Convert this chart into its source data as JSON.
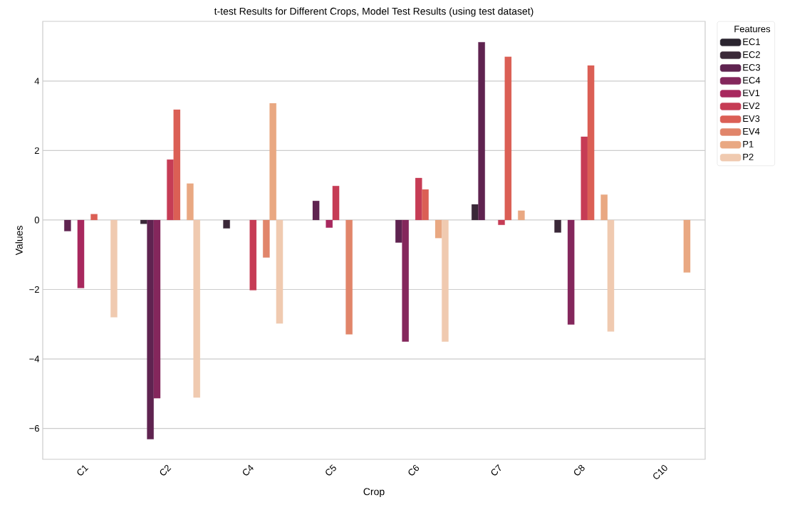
{
  "chart_data": {
    "type": "bar",
    "title": "t-test Results for Different Crops, Model Test Results (using test dataset)",
    "xlabel": "Crop",
    "ylabel": "Values",
    "legend_title": "Features",
    "categories": [
      "C1",
      "C2",
      "C4",
      "C5",
      "C6",
      "C7",
      "C8",
      "C10"
    ],
    "series": [
      {
        "name": "EC1",
        "color": "#2b2530",
        "values": [
          null,
          null,
          null,
          null,
          null,
          null,
          null,
          null
        ]
      },
      {
        "name": "EC2",
        "color": "#3a2838",
        "values": [
          null,
          -0.11,
          -0.24,
          null,
          null,
          0.45,
          -0.36,
          null
        ]
      },
      {
        "name": "EC3",
        "color": "#5f2350",
        "values": [
          -0.32,
          -6.31,
          null,
          0.55,
          -0.65,
          5.12,
          null,
          null
        ]
      },
      {
        "name": "EC4",
        "color": "#84275c",
        "values": [
          null,
          -5.13,
          null,
          null,
          -3.5,
          null,
          -3.01,
          null
        ]
      },
      {
        "name": "EV1",
        "color": "#a8285e",
        "values": [
          -1.96,
          null,
          null,
          -0.22,
          null,
          null,
          null,
          null
        ]
      },
      {
        "name": "EV2",
        "color": "#c63c55",
        "values": [
          null,
          1.74,
          -2.02,
          0.98,
          1.21,
          -0.14,
          2.4,
          null
        ]
      },
      {
        "name": "EV3",
        "color": "#db5f55",
        "values": [
          0.17,
          3.18,
          null,
          null,
          0.88,
          4.7,
          4.45,
          null
        ]
      },
      {
        "name": "EV4",
        "color": "#e1856a",
        "values": [
          null,
          null,
          -1.08,
          -3.29,
          null,
          null,
          null,
          null
        ]
      },
      {
        "name": "P1",
        "color": "#e9a882",
        "values": [
          null,
          1.05,
          3.36,
          null,
          -0.52,
          0.27,
          0.73,
          -1.51
        ]
      },
      {
        "name": "P2",
        "color": "#f0cab0",
        "values": [
          -2.8,
          -5.11,
          -2.98,
          null,
          -3.5,
          null,
          -3.21,
          null
        ]
      }
    ],
    "ylim": [
      -6.89,
      5.72
    ],
    "yticks": [
      {
        "value": -6,
        "label": "−6"
      },
      {
        "value": -4,
        "label": "−4"
      },
      {
        "value": -2,
        "label": "−2"
      },
      0,
      2,
      4
    ],
    "grid": "y",
    "legend": "top right"
  }
}
